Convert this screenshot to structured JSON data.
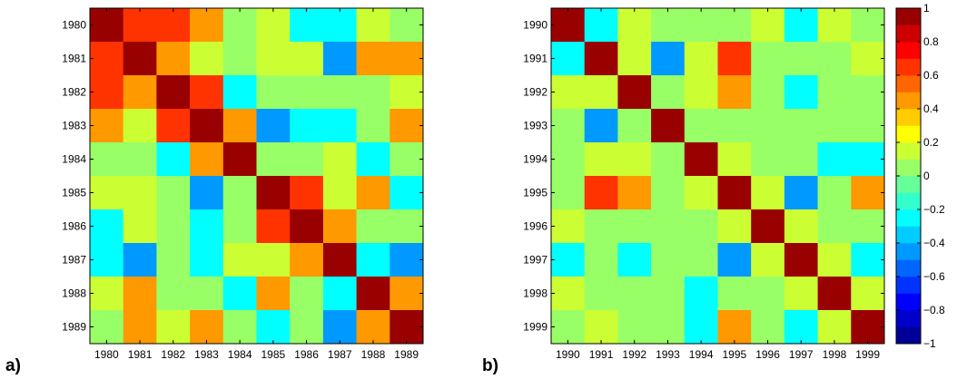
{
  "chart_data": [
    {
      "type": "heatmap",
      "panel_label": "a)",
      "x_categories": [
        "1980",
        "1981",
        "1982",
        "1983",
        "1984",
        "1985",
        "1986",
        "1987",
        "1988",
        "1989"
      ],
      "y_categories": [
        "1980",
        "1981",
        "1982",
        "1983",
        "1984",
        "1985",
        "1986",
        "1987",
        "1988",
        "1989"
      ],
      "values": [
        [
          1.0,
          0.6,
          0.6,
          0.4,
          0.0,
          0.1,
          -0.3,
          -0.3,
          0.1,
          0.0
        ],
        [
          0.6,
          1.0,
          0.4,
          0.1,
          0.0,
          0.1,
          0.1,
          -0.5,
          0.4,
          0.4
        ],
        [
          0.6,
          0.4,
          1.0,
          0.6,
          -0.3,
          0.0,
          0.0,
          0.0,
          0.0,
          0.1
        ],
        [
          0.4,
          0.1,
          0.6,
          1.0,
          0.4,
          -0.5,
          -0.3,
          -0.3,
          0.0,
          0.4
        ],
        [
          0.0,
          0.0,
          -0.3,
          0.4,
          1.0,
          0.0,
          0.0,
          0.1,
          -0.3,
          0.0
        ],
        [
          0.1,
          0.1,
          0.0,
          -0.5,
          0.0,
          1.0,
          0.6,
          0.1,
          0.4,
          -0.3
        ],
        [
          -0.3,
          0.1,
          0.0,
          -0.3,
          0.0,
          0.6,
          1.0,
          0.4,
          0.0,
          0.0
        ],
        [
          -0.3,
          -0.5,
          0.0,
          -0.3,
          0.1,
          0.1,
          0.4,
          1.0,
          -0.3,
          -0.5
        ],
        [
          0.1,
          0.4,
          0.0,
          0.0,
          -0.3,
          0.4,
          0.0,
          -0.3,
          1.0,
          0.4
        ],
        [
          0.0,
          0.4,
          0.1,
          0.4,
          0.0,
          -0.3,
          0.0,
          -0.5,
          0.4,
          1.0
        ]
      ]
    },
    {
      "type": "heatmap",
      "panel_label": "b)",
      "x_categories": [
        "1990",
        "1991",
        "1992",
        "1993",
        "1994",
        "1995",
        "1996",
        "1997",
        "1998",
        "1999"
      ],
      "y_categories": [
        "1990",
        "1991",
        "1992",
        "1993",
        "1994",
        "1995",
        "1996",
        "1997",
        "1998",
        "1999"
      ],
      "values": [
        [
          1.0,
          -0.3,
          0.1,
          0.0,
          0.0,
          0.0,
          0.1,
          -0.3,
          0.1,
          0.0
        ],
        [
          -0.3,
          1.0,
          0.1,
          -0.5,
          0.1,
          0.6,
          0.0,
          0.0,
          0.0,
          0.1
        ],
        [
          0.1,
          0.1,
          1.0,
          0.0,
          0.1,
          0.4,
          0.0,
          -0.3,
          0.0,
          0.0
        ],
        [
          0.0,
          -0.5,
          0.0,
          1.0,
          0.0,
          0.0,
          0.0,
          0.0,
          0.0,
          0.0
        ],
        [
          0.0,
          0.1,
          0.1,
          0.0,
          1.0,
          0.1,
          0.0,
          0.0,
          -0.3,
          -0.3
        ],
        [
          0.0,
          0.6,
          0.4,
          0.0,
          0.1,
          1.0,
          0.1,
          -0.5,
          0.0,
          0.4
        ],
        [
          0.1,
          0.0,
          0.0,
          0.0,
          0.0,
          0.1,
          1.0,
          0.1,
          0.0,
          0.0
        ],
        [
          -0.3,
          0.0,
          -0.3,
          0.0,
          0.0,
          -0.5,
          0.1,
          1.0,
          0.1,
          -0.3
        ],
        [
          0.1,
          0.0,
          0.0,
          0.0,
          -0.3,
          0.0,
          0.0,
          0.1,
          1.0,
          0.1
        ],
        [
          0.0,
          0.1,
          0.0,
          0.0,
          -0.3,
          0.4,
          0.0,
          -0.3,
          0.1,
          1.0
        ]
      ]
    }
  ],
  "colorbar": {
    "ticks": [
      "1",
      "0.8",
      "0.6",
      "0.4",
      "0.2",
      "0",
      "−0.2",
      "−0.4",
      "−0.6",
      "−0.8",
      "−1"
    ],
    "range": [
      -1,
      1
    ],
    "levels": 20,
    "colormap": "jet"
  }
}
